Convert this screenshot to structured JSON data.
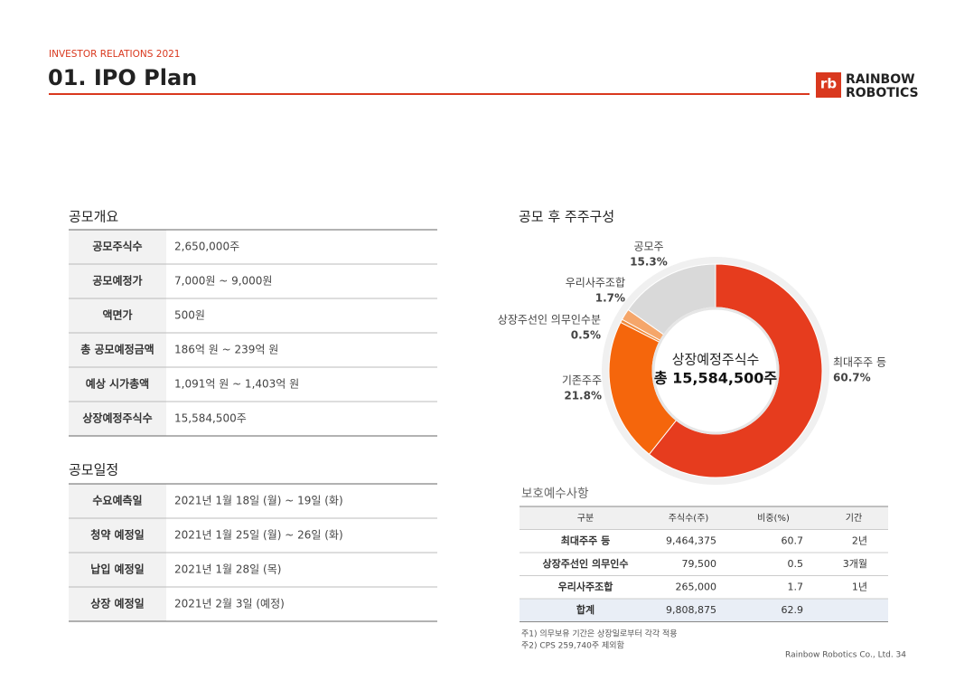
{
  "header": {
    "kicker": "INVESTOR RELATIONS 2021",
    "title": "01. IPO Plan",
    "logo_mark": "rb",
    "logo_lines": [
      "RAINBOW",
      "ROBOTICS"
    ]
  },
  "overview": {
    "title": "공모개요",
    "rows": [
      [
        "공모주식수",
        "2,650,000주"
      ],
      [
        "공모예정가",
        "7,000원 ~ 9,000원"
      ],
      [
        "액면가",
        "500원"
      ],
      [
        "총 공모예정금액",
        "186억 원 ~ 239억 원"
      ],
      [
        "예상 시가총액",
        "1,091억 원 ~ 1,403억 원"
      ],
      [
        "상장예정주식수",
        "15,584,500주"
      ]
    ]
  },
  "schedule": {
    "title": "공모일정",
    "rows": [
      [
        "수요예측일",
        "2021년 1월 18일 (월) ~ 19일 (화)"
      ],
      [
        "청약 예정일",
        "2021년 1월 25일 (월) ~ 26일 (화)"
      ],
      [
        "납입 예정일",
        "2021년 1월 28일 (목)"
      ],
      [
        "상장 예정일",
        "2021년 2월 3일 (예정)"
      ]
    ]
  },
  "chart_data": {
    "type": "donut",
    "title": "공모 후 주주구성",
    "center_label": "상장예정주식수",
    "center_value": "총 15,584,500주",
    "categories": [
      "최대주주 등",
      "기존주주",
      "상장주선인 의무인수분",
      "우리사주조합",
      "공모주"
    ],
    "values": [
      60.7,
      21.8,
      0.5,
      1.7,
      15.3
    ],
    "value_labels": [
      "60.7%",
      "21.8%",
      "0.5%",
      "1.7%",
      "15.3%"
    ],
    "colors": [
      "#e63c1e",
      "#f5660c",
      "#f08a3c",
      "#f5a66a",
      "#d9d9d9"
    ]
  },
  "lockup": {
    "title": "보호예수사항",
    "header": [
      "구분",
      "주식수(주)",
      "비중(%)",
      "기간"
    ],
    "rows": [
      [
        "최대주주 등",
        "9,464,375",
        "60.7",
        "2년"
      ],
      [
        "상장주선인 의무인수",
        "79,500",
        "0.5",
        "3개월"
      ],
      [
        "우리사주조합",
        "265,000",
        "1.7",
        "1년"
      ]
    ],
    "total": [
      "합계",
      "9,808,875",
      "62.9"
    ]
  },
  "notes": [
    "주1) 의무보유 기간은 상장일로부터 각각 적용",
    "주2) CPS 259,740주 제외함"
  ],
  "footer": "Rainbow Robotics Co., Ltd. 34"
}
